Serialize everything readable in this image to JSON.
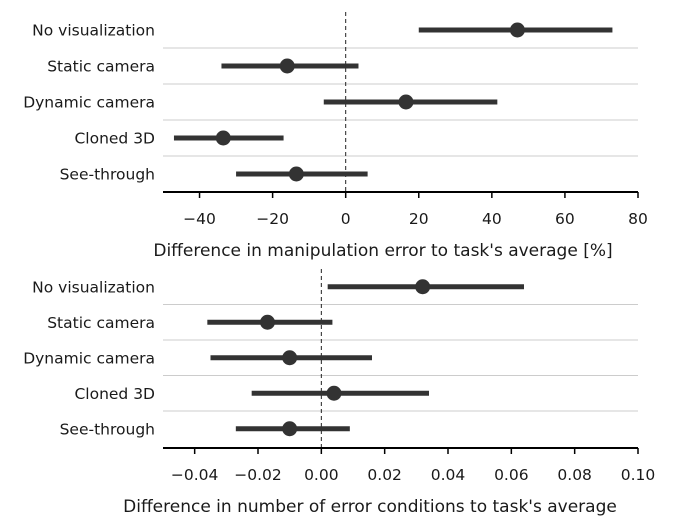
{
  "chart_data": [
    {
      "type": "dot_interval",
      "categories": [
        "No visualization",
        "Static camera",
        "Dynamic camera",
        "Cloned 3D",
        "See-through"
      ],
      "values": [
        47,
        -16,
        16.5,
        -33.5,
        -13.5
      ],
      "intervals": [
        [
          20,
          73
        ],
        [
          -34,
          3.5
        ],
        [
          -6,
          41.5
        ],
        [
          -47,
          -17
        ],
        [
          -30,
          6
        ]
      ],
      "xlabel": "Difference in manipulation error to task's average [%]",
      "xlim": [
        -50,
        80
      ],
      "xticks": [
        -40,
        -20,
        0,
        20,
        40,
        60,
        80
      ],
      "xtick_labels": [
        "−40",
        "−20",
        "0",
        "20",
        "40",
        "60",
        "80"
      ],
      "reference_line": 0,
      "grid": "horizontal separators between categories"
    },
    {
      "type": "dot_interval",
      "categories": [
        "No visualization",
        "Static camera",
        "Dynamic camera",
        "Cloned 3D",
        "See-through"
      ],
      "values": [
        0.032,
        -0.017,
        -0.01,
        0.004,
        -0.01
      ],
      "intervals": [
        [
          0.002,
          0.064
        ],
        [
          -0.036,
          0.0035
        ],
        [
          -0.035,
          0.016
        ],
        [
          -0.022,
          0.034
        ],
        [
          -0.027,
          0.009
        ]
      ],
      "xlabel": "Difference in number of error conditions to task's average",
      "xlim": [
        -0.05,
        0.1
      ],
      "xticks": [
        -0.04,
        -0.02,
        0.0,
        0.02,
        0.04,
        0.06,
        0.08,
        0.1
      ],
      "xtick_labels": [
        "−0.04",
        "−0.02",
        "0.00",
        "0.02",
        "0.04",
        "0.06",
        "0.08",
        "0.10"
      ],
      "reference_line": 0,
      "grid": "horizontal separators between categories"
    }
  ],
  "colors": {
    "mark": "#333333",
    "grid": "#cccccc",
    "axis": "#000000"
  }
}
